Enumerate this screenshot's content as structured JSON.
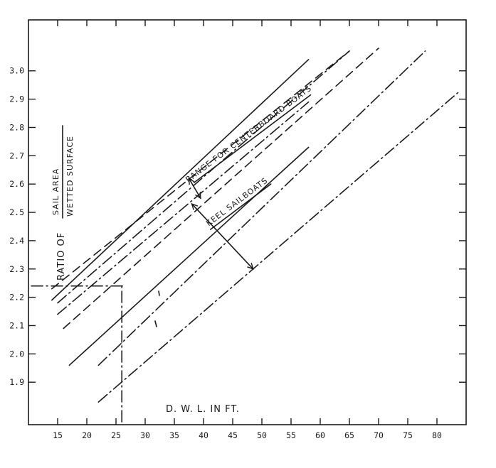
{
  "chart_data": {
    "type": "line",
    "title": "",
    "xlabel": "D. W. L. IN FT.",
    "ylabel": {
      "prefix": "RATIO OF",
      "numerator": "SAIL AREA",
      "denominator": "WETTED SURFACE"
    },
    "xlim": [
      10,
      85
    ],
    "ylim": [
      1.75,
      3.18
    ],
    "x_ticks": [
      15,
      20,
      25,
      30,
      35,
      40,
      45,
      50,
      55,
      60,
      65,
      70,
      75,
      80
    ],
    "y_ticks": [
      1.9,
      2.0,
      2.1,
      2.2,
      2.3,
      2.4,
      2.5,
      2.6,
      2.7,
      2.8,
      2.9,
      3.0
    ],
    "y_tick_labels": [
      "1.9",
      "2.0",
      "2.1",
      "2.2",
      "2.3",
      "2.4",
      "2.5",
      "2.6",
      "2.7",
      "2.8",
      "2.9",
      "3.0"
    ],
    "grid": false,
    "series": [
      {
        "style": "dashed",
        "x": [
          14,
          65
        ],
        "y": [
          2.23,
          3.07
        ]
      },
      {
        "style": "dashdot",
        "x": [
          15,
          65
        ],
        "y": [
          2.18,
          3.07
        ]
      },
      {
        "style": "solid",
        "x": [
          14,
          58
        ],
        "y": [
          2.19,
          3.04
        ]
      },
      {
        "style": "dashed",
        "x": [
          16,
          70
        ],
        "y": [
          2.09,
          3.08
        ]
      },
      {
        "style": "dashdot",
        "x": [
          15,
          58
        ],
        "y": [
          2.14,
          2.89
        ]
      },
      {
        "style": "dashdot",
        "x": [
          22,
          78
        ],
        "y": [
          1.96,
          3.07
        ]
      },
      {
        "style": "solid",
        "x": [
          17,
          58
        ],
        "y": [
          1.96,
          2.73
        ]
      },
      {
        "style": "dashdot",
        "x": [
          22,
          84
        ],
        "y": [
          1.83,
          2.93
        ]
      }
    ],
    "reference_lines": [
      {
        "style": "dashdot",
        "x": [
          10.5,
          26.5
        ],
        "y": [
          2.24,
          2.24
        ]
      },
      {
        "style": "dashdot",
        "x": [
          26,
          26
        ],
        "y": [
          1.76,
          2.24
        ]
      }
    ],
    "annotations": [
      {
        "text": "RANGE FOR CENTERBOARD BOATS",
        "x": 48,
        "y": 2.77,
        "angle": -37
      },
      {
        "text": "KEEL SAILBOATS",
        "x": 46,
        "y": 2.53,
        "angle": -37
      },
      {
        "arrow": true,
        "x": [
          37.5,
          39.5
        ],
        "y": [
          2.62,
          2.55
        ]
      },
      {
        "arrow": true,
        "x": [
          38,
          48.5
        ],
        "y": [
          2.53,
          2.3
        ]
      }
    ]
  }
}
